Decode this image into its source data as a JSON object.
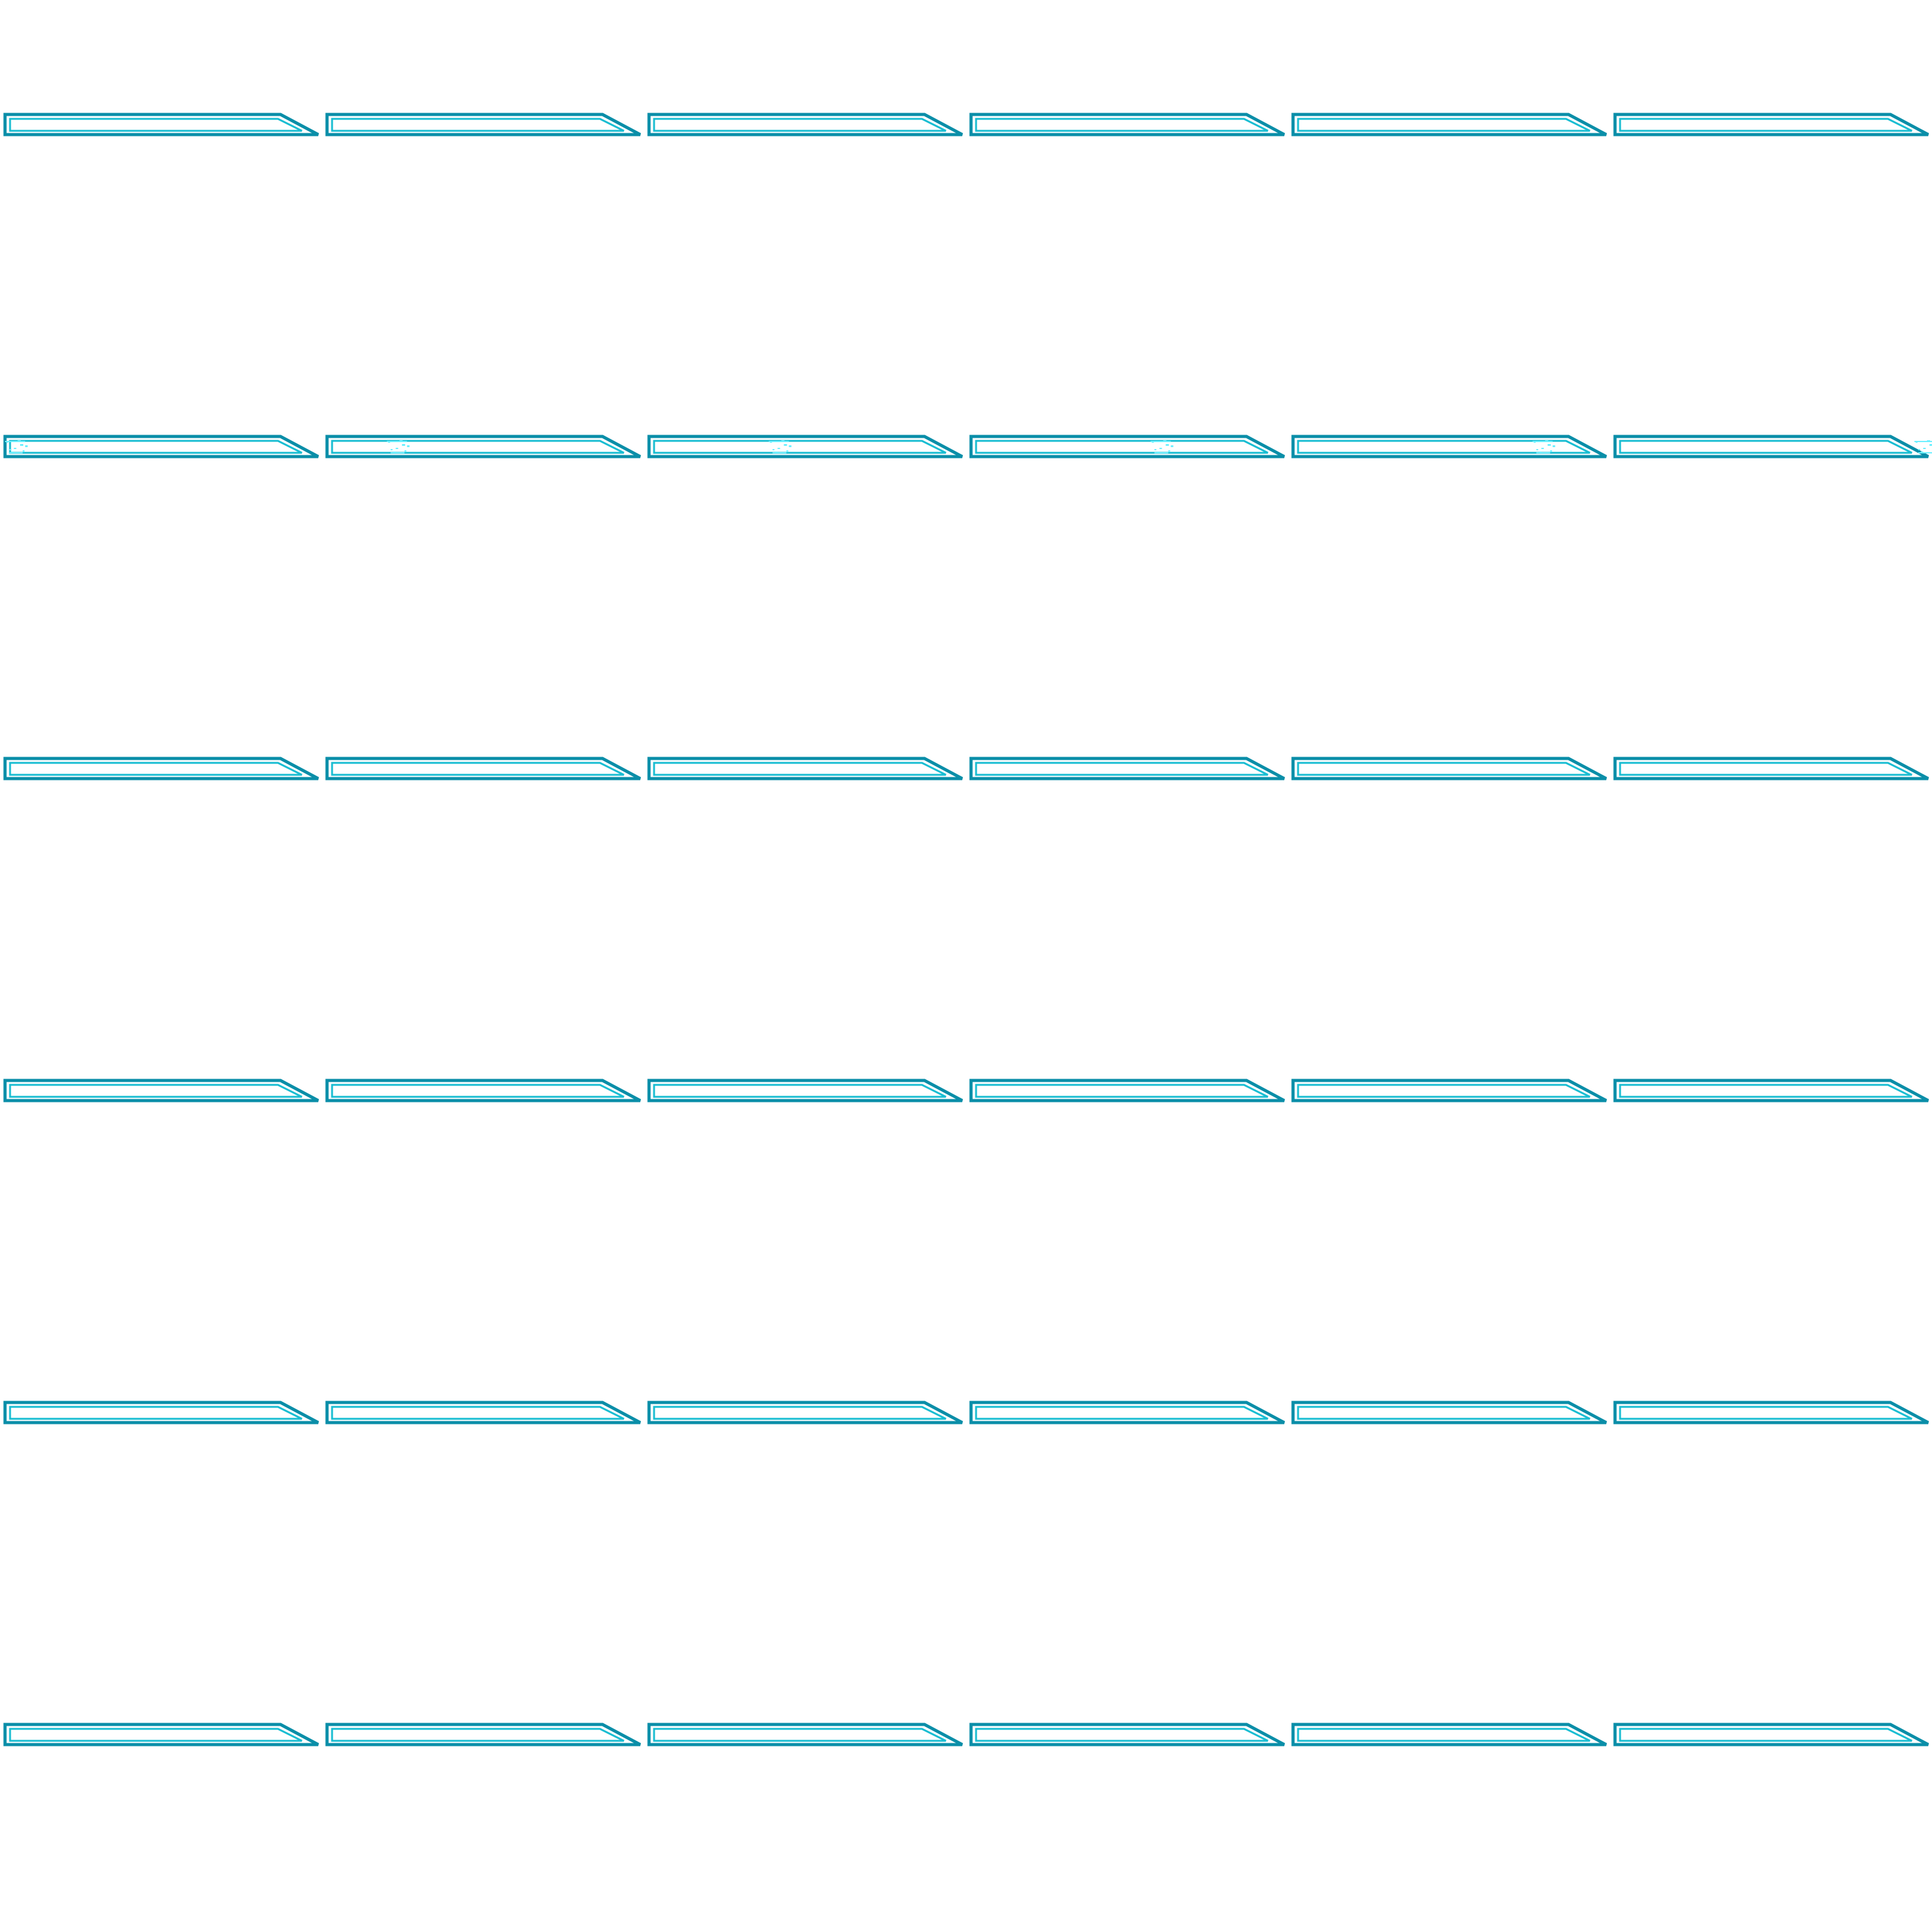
{
  "sprite_sheet": {
    "columns": 6,
    "rows": 6,
    "frame_count": 36,
    "sprite": "blade-icon",
    "colors": {
      "outline": "#0a8ea8",
      "inner": "#18bdd2",
      "fill": "#ffffff",
      "glint": "#6ff0ff",
      "background": "#ffffff"
    },
    "glint_frames": [
      6,
      7,
      8,
      9,
      10,
      11
    ]
  }
}
